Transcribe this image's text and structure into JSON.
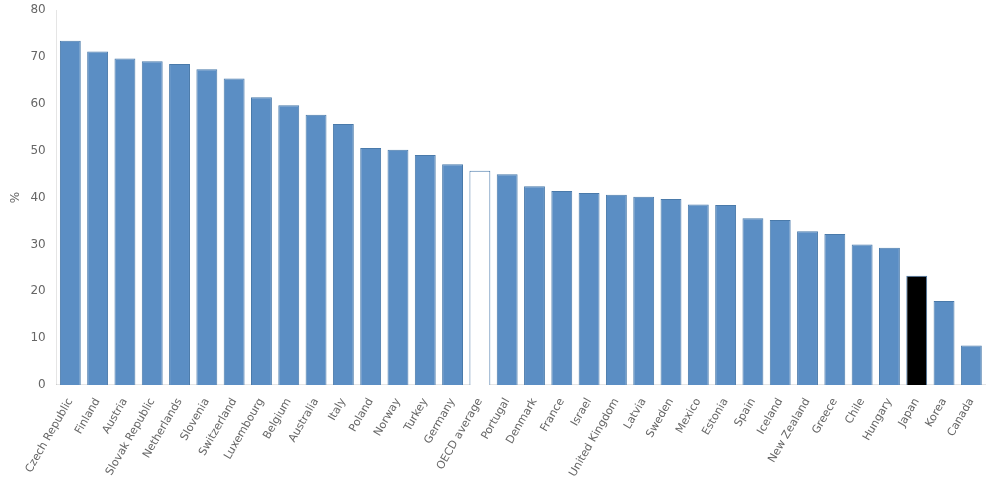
{
  "chart_data": {
    "type": "bar",
    "ylabel": "%",
    "categories": [
      "Czech Republic",
      "Finland",
      "Austria",
      "Slovak Republic",
      "Netherlands",
      "Slovenia",
      "Switzerland",
      "Luxembourg",
      "Belgium",
      "Australia",
      "Italy",
      "Poland",
      "Norway",
      "Turkey",
      "Germany",
      "OECD average",
      "Portugal",
      "Denmark",
      "France",
      "Israel",
      "United Kingdom",
      "Latvia",
      "Sweden",
      "Mexico",
      "Estonia",
      "Spain",
      "Iceland",
      "New Zealand",
      "Greece",
      "Chile",
      "Hungary",
      "Japan",
      "Korea",
      "Canada"
    ],
    "values": [
      73.5,
      71.2,
      69.7,
      69.1,
      68.5,
      67.4,
      65.4,
      61.4,
      59.7,
      57.7,
      55.7,
      50.6,
      50.2,
      49.1,
      47.1,
      45.7,
      45.0,
      42.4,
      41.4,
      41.0,
      40.6,
      40.2,
      39.7,
      38.5,
      38.4,
      35.6,
      35.2,
      32.8,
      32.2,
      30.0,
      29.3,
      23.3,
      17.9,
      8.4
    ],
    "colors": [
      "#5b8ec4",
      "#5b8ec4",
      "#5b8ec4",
      "#5b8ec4",
      "#5b8ec4",
      "#5b8ec4",
      "#5b8ec4",
      "#5b8ec4",
      "#5b8ec4",
      "#5b8ec4",
      "#5b8ec4",
      "#5b8ec4",
      "#5b8ec4",
      "#5b8ec4",
      "#5b8ec4",
      "#ffffff",
      "#5b8ec4",
      "#5b8ec4",
      "#5b8ec4",
      "#5b8ec4",
      "#5b8ec4",
      "#5b8ec4",
      "#5b8ec4",
      "#5b8ec4",
      "#5b8ec4",
      "#5b8ec4",
      "#5b8ec4",
      "#5b8ec4",
      "#5b8ec4",
      "#5b8ec4",
      "#5b8ec4",
      "#000000",
      "#5b8ec4",
      "#5b8ec4"
    ],
    "ylim": [
      0,
      80
    ],
    "yticks": [
      0,
      10,
      20,
      30,
      40,
      50,
      60,
      70,
      80
    ],
    "grid": false
  }
}
